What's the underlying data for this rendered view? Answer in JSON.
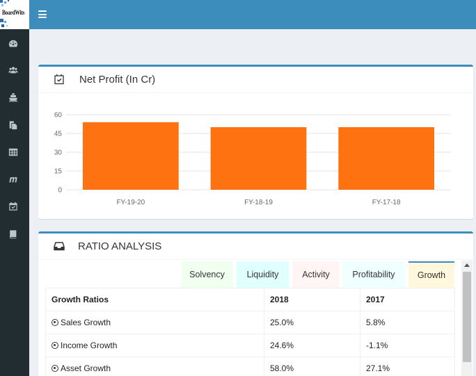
{
  "brand": {
    "name": "BoardWits"
  },
  "colors": {
    "topbar": "#3c8dbc",
    "sidebar": "#222d32",
    "bar": "#ff7212"
  },
  "sidebar": {
    "items": [
      {
        "icon": "dashboard-icon"
      },
      {
        "icon": "users-icon"
      },
      {
        "icon": "ship-icon"
      },
      {
        "icon": "documents-icon"
      },
      {
        "icon": "table-icon"
      },
      {
        "icon": "m-letter-icon"
      },
      {
        "icon": "calendar-check-icon"
      },
      {
        "icon": "book-icon"
      }
    ]
  },
  "net_profit": {
    "title": "Net Profit (In Cr)"
  },
  "chart_data": {
    "type": "bar",
    "categories": [
      "FY-19-20",
      "FY-18-19",
      "FY-17-18"
    ],
    "values": [
      54,
      50,
      50
    ],
    "ylim": [
      0,
      60
    ],
    "yticks": [
      0,
      15,
      30,
      45,
      60
    ],
    "grid": true,
    "color": "#ff7212"
  },
  "ratio": {
    "title": "RATIO ANALYSIS",
    "tabs": [
      {
        "label": "Solvency",
        "bg": "#f0fff0"
      },
      {
        "label": "Liquidity",
        "bg": "#e0ffff"
      },
      {
        "label": "Activity",
        "bg": "#fff5f5"
      },
      {
        "label": "Profitability",
        "bg": "#f0ffff"
      },
      {
        "label": "Growth",
        "bg": "#fff8dc"
      }
    ],
    "active_tab": "Growth",
    "table": {
      "headers": [
        "Growth Ratios",
        "2018",
        "2017"
      ],
      "rows": [
        {
          "label": "Sales Growth",
          "y2018": "25.0%",
          "y2017": "5.8%"
        },
        {
          "label": "Income Growth",
          "y2018": "24.6%",
          "y2017": "-1.1%"
        },
        {
          "label": "Asset Growth",
          "y2018": "58.0%",
          "y2017": "27.1%"
        }
      ]
    }
  }
}
